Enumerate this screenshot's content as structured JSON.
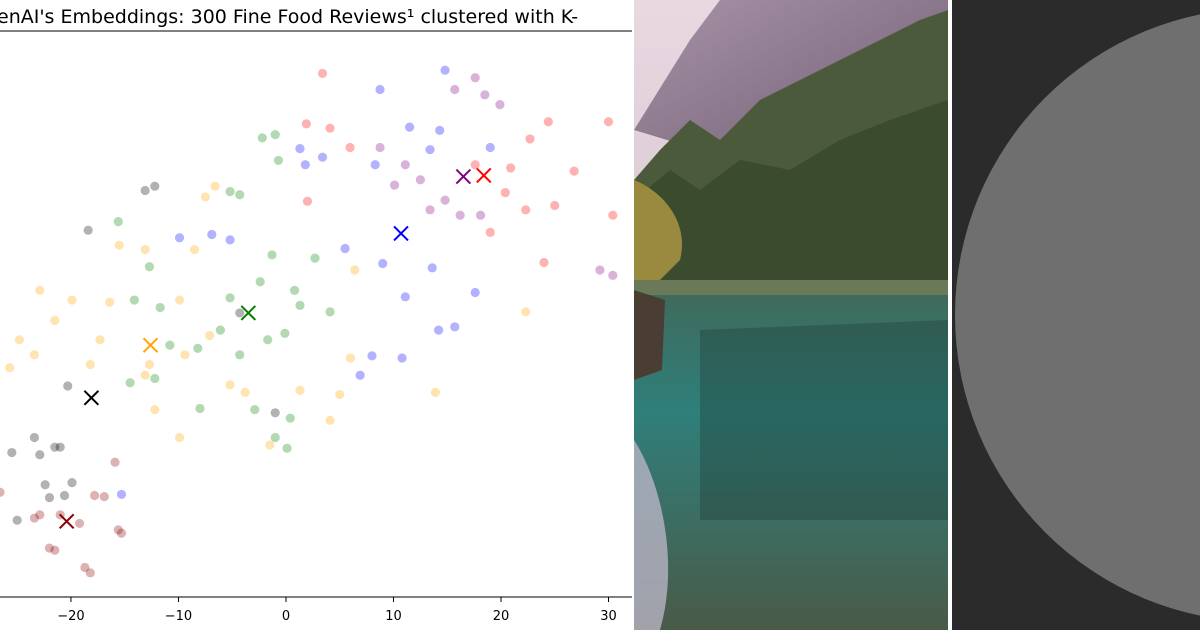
{
  "chart_data": {
    "type": "scatter",
    "title": "enAI's Embeddings: 300 Fine Food Reviews¹ clustered with K-",
    "xlim": [
      -26.6,
      32.0
    ],
    "ylim": [
      -26.35,
      26.35
    ],
    "xticks": [
      {
        "value": -20,
        "label": "−20"
      },
      {
        "value": -10,
        "label": "−10"
      },
      0,
      10,
      20,
      30
    ],
    "series": [
      {
        "color": "red",
        "centroid_x": 18.4,
        "centroid_y": 12.9,
        "x": [
          3.4,
          1.9,
          4.1,
          5.96,
          2.0,
          22.7,
          24.4,
          26.8,
          30.0,
          30.4,
          24.0,
          19.0,
          20.4,
          22.3,
          25.0,
          17.6,
          20.9
        ],
        "y": [
          22.4,
          17.7,
          17.3,
          15.5,
          10.5,
          16.3,
          17.9,
          13.3,
          17.9,
          9.2,
          4.8,
          7.6,
          11.3,
          9.7,
          10.1,
          13.9,
          13.6
        ]
      },
      {
        "color": "blue",
        "centroid_x": 10.7,
        "centroid_y": 7.5,
        "x": [
          8.75,
          14.8,
          11.5,
          14.3,
          1.3,
          3.4,
          1.8,
          8.3,
          13.4,
          19.0,
          -9.9,
          -6.9,
          -5.2,
          5.5,
          9.0,
          13.6,
          11.1,
          17.6,
          14.2,
          15.7,
          8.0,
          10.8,
          6.9,
          -15.3
        ],
        "y": [
          20.9,
          22.7,
          17.4,
          17.1,
          15.4,
          14.6,
          13.9,
          13.9,
          15.3,
          15.5,
          7.1,
          7.4,
          6.9,
          6.1,
          4.7,
          4.3,
          1.6,
          2.0,
          -1.5,
          -1.2,
          -3.9,
          -4.1,
          -5.7,
          -16.8
        ]
      },
      {
        "color": "purple",
        "centroid_x": 16.5,
        "centroid_y": 12.8,
        "x": [
          17.6,
          18.5,
          19.9,
          15.7,
          8.75,
          11.1,
          10.1,
          12.5,
          14.8,
          16.2,
          13.4,
          29.2,
          30.4,
          18.1
        ],
        "y": [
          22.0,
          20.4,
          19.5,
          20.9,
          15.5,
          13.9,
          12.0,
          12.5,
          10.6,
          9.2,
          9.7,
          4.1,
          3.6,
          9.2
        ]
      },
      {
        "color": "green",
        "centroid_x": -3.5,
        "centroid_y": 0.1,
        "x": [
          -2.2,
          -1.0,
          -0.7,
          -5.2,
          -4.3,
          -15.6,
          -12.7,
          -14.1,
          -11.7,
          -8.2,
          -10.8,
          -14.5,
          -12.2,
          -8.0,
          -2.9,
          0.4,
          -1.0,
          0.1,
          -4.3,
          -1.7,
          -0.1,
          4.1,
          1.3,
          -2.4,
          -1.3,
          2.7,
          0.8,
          -6.1,
          -5.2
        ],
        "y": [
          16.4,
          16.7,
          14.3,
          11.4,
          11.1,
          8.6,
          4.4,
          1.3,
          0.6,
          -3.2,
          -2.9,
          -6.4,
          -6.0,
          -8.8,
          -8.9,
          -9.7,
          -11.5,
          -12.5,
          -3.8,
          -2.4,
          -1.8,
          0.2,
          0.8,
          3.0,
          5.5,
          5.2,
          2.2,
          -1.5,
          1.5
        ]
      },
      {
        "color": "orange",
        "centroid_x": -12.6,
        "centroid_y": -2.9,
        "x": [
          -6.6,
          -7.5,
          -13.1,
          -15.5,
          -16.4,
          -19.9,
          -22.9,
          -21.5,
          -24.8,
          -23.4,
          -25.7,
          -18.2,
          -12.7,
          -13.1,
          -9.4,
          -7.1,
          -9.9,
          -8.5,
          -5.2,
          -1.5,
          -9.9,
          -12.2,
          -17.3,
          6.0,
          5.0,
          6.4,
          22.3,
          13.9,
          1.3,
          4.1,
          -3.8
        ],
        "y": [
          11.9,
          10.9,
          6.0,
          6.4,
          1.1,
          1.3,
          2.2,
          -0.6,
          -2.4,
          -3.8,
          -5.0,
          -4.7,
          -4.7,
          -5.7,
          -3.8,
          -2.0,
          1.3,
          6.0,
          -6.6,
          -12.2,
          -11.5,
          -8.9,
          -2.4,
          -4.1,
          -7.5,
          4.1,
          0.2,
          -7.3,
          -7.1,
          -9.9,
          -7.3
        ]
      },
      {
        "color": "black",
        "centroid_x": -18.1,
        "centroid_y": -7.8,
        "x": [
          -13.1,
          -12.2,
          -18.4,
          -20.3,
          -23.4,
          -21.5,
          -21.0,
          -22.9,
          -25.5,
          -22.4,
          -22.0,
          -19.9,
          -20.6,
          -25.0,
          -1.0,
          -4.3
        ],
        "y": [
          11.5,
          11.9,
          7.8,
          -6.7,
          -11.5,
          -12.4,
          -12.4,
          -13.1,
          -12.9,
          -15.9,
          -17.1,
          -15.7,
          -16.9,
          -19.2,
          -9.2,
          0.1
        ]
      },
      {
        "color": "darkred",
        "centroid_x": -20.4,
        "centroid_y": -19.3,
        "x": [
          -17.8,
          -16.9,
          -22.9,
          -23.4,
          -21.0,
          -19.2,
          -15.6,
          -15.3,
          -22.0,
          -21.5,
          -18.7,
          -18.2,
          -26.6,
          -15.9
        ],
        "y": [
          -16.9,
          -17.0,
          -18.7,
          -19.0,
          -18.7,
          -19.5,
          -20.1,
          -20.4,
          -21.8,
          -22.0,
          -23.6,
          -24.1,
          -16.6,
          -13.8
        ]
      }
    ]
  }
}
